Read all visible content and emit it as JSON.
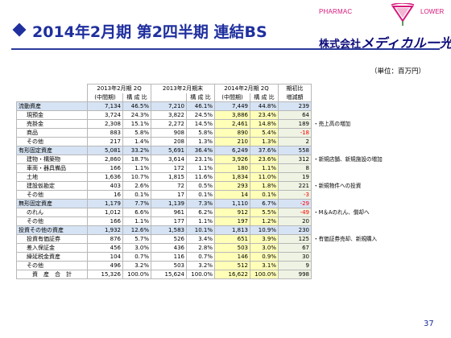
{
  "header": {
    "title": "2014年2月期 第2四半期 連結BS",
    "logo_left": "PHARMAC",
    "logo_right": "LOWER",
    "company_prefix": "株式会社",
    "company_name": "メディカル一光"
  },
  "unit": "（単位：百万円）",
  "columns": {
    "period1": "2013年2月期 2Q",
    "period1_sub": "(中間期)",
    "ratio1": "構 成 比",
    "period2": "2013年2月期末",
    "ratio2": "構 成 比",
    "period3": "2014年2月期 2Q",
    "period3_sub": "(中間期)",
    "ratio3": "構 成 比",
    "diff": "期初比",
    "diff_sub": "増減額"
  },
  "rows": [
    {
      "label": "流動資産",
      "section": true,
      "v1": "7,134",
      "p1": "46.5%",
      "v2": "7,210",
      "p2": "46.1%",
      "v3": "7,449",
      "p3": "44.8%",
      "diff": "239",
      "neg": false,
      "note": ""
    },
    {
      "label": "現預金",
      "section": false,
      "v1": "3,724",
      "p1": "24.3%",
      "v2": "3,822",
      "p2": "24.5%",
      "v3": "3,886",
      "p3": "23.4%",
      "diff": "64",
      "neg": false,
      "note": ""
    },
    {
      "label": "売掛金",
      "section": false,
      "v1": "2,308",
      "p1": "15.1%",
      "v2": "2,272",
      "p2": "14.5%",
      "v3": "2,461",
      "p3": "14.8%",
      "diff": "189",
      "neg": false,
      "note": "・売上高の増加"
    },
    {
      "label": "商品",
      "section": false,
      "v1": "883",
      "p1": "5.8%",
      "v2": "908",
      "p2": "5.8%",
      "v3": "890",
      "p3": "5.4%",
      "diff": "-18",
      "neg": true,
      "note": ""
    },
    {
      "label": "その他",
      "section": false,
      "v1": "217",
      "p1": "1.4%",
      "v2": "208",
      "p2": "1.3%",
      "v3": "210",
      "p3": "1.3%",
      "diff": "2",
      "neg": false,
      "note": ""
    },
    {
      "label": "有形固定資産",
      "section": true,
      "v1": "5,081",
      "p1": "33.2%",
      "v2": "5,691",
      "p2": "36.4%",
      "v3": "6,249",
      "p3": "37.6%",
      "diff": "558",
      "neg": false,
      "note": ""
    },
    {
      "label": "建物・構築物",
      "section": false,
      "v1": "2,860",
      "p1": "18.7%",
      "v2": "3,614",
      "p2": "23.1%",
      "v3": "3,926",
      "p3": "23.6%",
      "diff": "312",
      "neg": false,
      "note": "・新規店舗、新規施設の増加"
    },
    {
      "label": "車両・器具備品",
      "section": false,
      "v1": "166",
      "p1": "1.1%",
      "v2": "172",
      "p2": "1.1%",
      "v3": "180",
      "p3": "1.1%",
      "diff": "8",
      "neg": false,
      "note": ""
    },
    {
      "label": "土地",
      "section": false,
      "v1": "1,636",
      "p1": "10.7%",
      "v2": "1,815",
      "p2": "11.6%",
      "v3": "1,834",
      "p3": "11.0%",
      "diff": "19",
      "neg": false,
      "note": ""
    },
    {
      "label": "建設仮勘定",
      "section": false,
      "v1": "403",
      "p1": "2.6%",
      "v2": "72",
      "p2": "0.5%",
      "v3": "293",
      "p3": "1.8%",
      "diff": "221",
      "neg": false,
      "note": "・新規物件への投資"
    },
    {
      "label": "その他",
      "section": false,
      "v1": "16",
      "p1": "0.1%",
      "v2": "17",
      "p2": "0.1%",
      "v3": "14",
      "p3": "0.1%",
      "diff": "-3",
      "neg": true,
      "note": ""
    },
    {
      "label": "無形固定資産",
      "section": true,
      "v1": "1,179",
      "p1": "7.7%",
      "v2": "1,139",
      "p2": "7.3%",
      "v3": "1,110",
      "p3": "6.7%",
      "diff": "-29",
      "neg": true,
      "note": ""
    },
    {
      "label": "のれん",
      "section": false,
      "v1": "1,012",
      "p1": "6.6%",
      "v2": "961",
      "p2": "6.2%",
      "v3": "912",
      "p3": "5.5%",
      "diff": "-49",
      "neg": true,
      "note": "・M＆Aのれん、償却へ"
    },
    {
      "label": "その他",
      "section": false,
      "v1": "166",
      "p1": "1.1%",
      "v2": "177",
      "p2": "1.1%",
      "v3": "197",
      "p3": "1.2%",
      "diff": "20",
      "neg": false,
      "note": ""
    },
    {
      "label": "投資その他の資産",
      "section": true,
      "v1": "1,932",
      "p1": "12.6%",
      "v2": "1,583",
      "p2": "10.1%",
      "v3": "1,813",
      "p3": "10.9%",
      "diff": "230",
      "neg": false,
      "note": ""
    },
    {
      "label": "投資有価証券",
      "section": false,
      "v1": "876",
      "p1": "5.7%",
      "v2": "526",
      "p2": "3.4%",
      "v3": "651",
      "p3": "3.9%",
      "diff": "125",
      "neg": false,
      "note": "・有価証券売却、新規購入"
    },
    {
      "label": "差入保証金",
      "section": false,
      "v1": "456",
      "p1": "3.0%",
      "v2": "436",
      "p2": "2.8%",
      "v3": "503",
      "p3": "3.0%",
      "diff": "67",
      "neg": false,
      "note": ""
    },
    {
      "label": "繰延税金資産",
      "section": false,
      "v1": "104",
      "p1": "0.7%",
      "v2": "116",
      "p2": "0.7%",
      "v3": "146",
      "p3": "0.9%",
      "diff": "30",
      "neg": false,
      "note": ""
    },
    {
      "label": "その他",
      "section": false,
      "v1": "496",
      "p1": "3.2%",
      "v2": "503",
      "p2": "3.2%",
      "v3": "512",
      "p3": "3.1%",
      "diff": "9",
      "neg": false,
      "note": ""
    },
    {
      "label": "資　産　合　計",
      "section": false,
      "total": true,
      "v1": "15,326",
      "p1": "100.0%",
      "v2": "15,624",
      "p2": "100.0%",
      "v3": "16,622",
      "p3": "100.0%",
      "diff": "998",
      "neg": false,
      "note": ""
    }
  ],
  "colors": {
    "title": "#1f2f9e",
    "section_fill": "#d6e3f4",
    "negative": "#ff0000",
    "highlight": "#ffffb8"
  },
  "page_number": "37"
}
